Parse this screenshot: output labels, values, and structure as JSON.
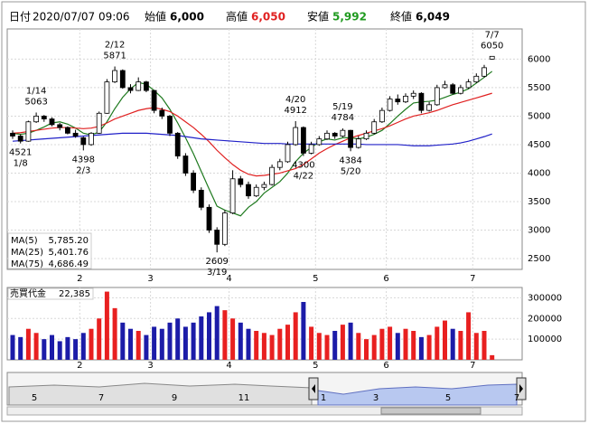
{
  "header": {
    "date_label": "日付",
    "date": "2020/07/07 09:06",
    "open_label": "始値",
    "open": "6,000",
    "high_label": "高値",
    "high": "6,050",
    "low_label": "安値",
    "low": "5,992",
    "close_label": "終値",
    "close": "6,049"
  },
  "chart_data": [
    {
      "type": "candlestick",
      "categories": [
        null,
        null,
        null,
        null,
        null,
        null,
        null,
        null,
        null,
        "2",
        null,
        null,
        null,
        null,
        null,
        null,
        null,
        null,
        "3",
        null,
        null,
        null,
        null,
        null,
        null,
        null,
        null,
        null,
        "4",
        null,
        null,
        null,
        null,
        null,
        null,
        null,
        null,
        null,
        null,
        "5",
        null,
        null,
        null,
        null,
        null,
        null,
        null,
        null,
        "6",
        null,
        null,
        null,
        null,
        null,
        null,
        null,
        null,
        null,
        null,
        "7",
        null,
        null
      ],
      "open": [
        4700,
        4650,
        4560,
        4900,
        5000,
        4950,
        4850,
        4800,
        4700,
        4620,
        4500,
        4700,
        5050,
        5600,
        5800,
        5500,
        5450,
        5600,
        5450,
        5100,
        5000,
        4700,
        4300,
        4000,
        3700,
        3400,
        3000,
        2750,
        3300,
        3900,
        3800,
        3600,
        3750,
        3800,
        4100,
        4200,
        4500,
        4800,
        4350,
        4500,
        4600,
        4700,
        4650,
        4750,
        4450,
        4600,
        4700,
        4900,
        5100,
        5300,
        5250,
        5350,
        5400,
        5100,
        5200,
        5500,
        5550,
        5400,
        5500,
        5600,
        5700,
        6000
      ],
      "high": [
        4750,
        4680,
        4920,
        5063,
        5020,
        4980,
        4880,
        4820,
        4760,
        4640,
        4720,
        5080,
        5650,
        5871,
        5820,
        5560,
        5680,
        5620,
        5460,
        5150,
        5020,
        4720,
        4350,
        4050,
        3750,
        3450,
        3050,
        3350,
        4050,
        3950,
        3850,
        3800,
        3850,
        4150,
        4250,
        4550,
        4912,
        4820,
        4550,
        4650,
        4750,
        4720,
        4784,
        4760,
        4650,
        4750,
        4950,
        5150,
        5350,
        5380,
        5400,
        5450,
        5420,
        5250,
        5550,
        5620,
        5580,
        5550,
        5650,
        5750,
        5900,
        6050
      ],
      "low": [
        4600,
        4521,
        4550,
        4880,
        4900,
        4820,
        4750,
        4680,
        4620,
        4398,
        4480,
        4690,
        5040,
        5580,
        5480,
        5400,
        5440,
        5420,
        5050,
        4950,
        4650,
        4250,
        3950,
        3650,
        3350,
        2950,
        2609,
        2720,
        3280,
        3750,
        3550,
        3580,
        3700,
        3780,
        4050,
        4180,
        4480,
        4300,
        4330,
        4480,
        4580,
        4600,
        4630,
        4384,
        4430,
        4580,
        4680,
        4880,
        5080,
        5200,
        5230,
        5300,
        5050,
        5080,
        5180,
        5480,
        5380,
        5380,
        5480,
        5580,
        5680,
        5992
      ],
      "close": [
        4650,
        4560,
        4900,
        5000,
        4950,
        4850,
        4800,
        4700,
        4650,
        4500,
        4700,
        5050,
        5600,
        5800,
        5500,
        5450,
        5600,
        5450,
        5100,
        5000,
        4700,
        4300,
        4000,
        3700,
        3400,
        3000,
        2750,
        3300,
        3900,
        3800,
        3600,
        3750,
        3800,
        4100,
        4200,
        4500,
        4800,
        4350,
        4500,
        4600,
        4700,
        4650,
        4750,
        4450,
        4600,
        4700,
        4900,
        5100,
        5300,
        5250,
        5350,
        5400,
        5100,
        5200,
        5500,
        5550,
        5400,
        5500,
        5600,
        5700,
        5850,
        6049
      ],
      "ylim": [
        2310,
        6530
      ],
      "yticks": [
        2500,
        3000,
        3500,
        4000,
        4500,
        5000,
        5500,
        6000
      ],
      "grid": true,
      "series": [
        {
          "name": "MA(5)",
          "color": "#1f7a1f",
          "current_label": "5,785.20",
          "values": [
            4700,
            4680,
            4700,
            4750,
            4810,
            4880,
            4900,
            4860,
            4790,
            4700,
            4670,
            4720,
            4900,
            5130,
            5330,
            5480,
            5590,
            5560,
            5450,
            5320,
            5120,
            4880,
            4620,
            4340,
            4030,
            3720,
            3420,
            3350,
            3300,
            3250,
            3400,
            3500,
            3650,
            3750,
            3850,
            4000,
            4200,
            4350,
            4450,
            4550,
            4600,
            4580,
            4620,
            4620,
            4600,
            4630,
            4680,
            4750,
            4870,
            5000,
            5120,
            5230,
            5250,
            5260,
            5280,
            5330,
            5380,
            5420,
            5480,
            5580,
            5680,
            5785.2
          ]
        },
        {
          "name": "MA(25)",
          "color": "#e02020",
          "current_label": "5,401.76",
          "values": [
            4700,
            4710,
            4730,
            4750,
            4770,
            4790,
            4800,
            4800,
            4790,
            4780,
            4790,
            4820,
            4880,
            4950,
            5000,
            5050,
            5100,
            5130,
            5150,
            5120,
            5080,
            5000,
            4900,
            4800,
            4680,
            4550,
            4400,
            4270,
            4150,
            4050,
            3980,
            3950,
            3960,
            3980,
            4000,
            4040,
            4080,
            4150,
            4250,
            4350,
            4430,
            4500,
            4560,
            4620,
            4660,
            4700,
            4740,
            4780,
            4830,
            4890,
            4950,
            5000,
            5030,
            5060,
            5100,
            5150,
            5200,
            5240,
            5280,
            5320,
            5360,
            5401.76
          ]
        },
        {
          "name": "MA(75)",
          "color": "#2020c8",
          "current_label": "4,686.49",
          "values": [
            4560,
            4570,
            4580,
            4590,
            4600,
            4610,
            4620,
            4630,
            4640,
            4650,
            4660,
            4670,
            4680,
            4690,
            4700,
            4700,
            4700,
            4700,
            4690,
            4680,
            4670,
            4660,
            4640,
            4620,
            4600,
            4590,
            4580,
            4570,
            4560,
            4550,
            4540,
            4530,
            4520,
            4520,
            4520,
            4510,
            4510,
            4510,
            4510,
            4510,
            4510,
            4510,
            4510,
            4510,
            4510,
            4500,
            4500,
            4500,
            4500,
            4500,
            4490,
            4480,
            4480,
            4480,
            4490,
            4500,
            4510,
            4530,
            4560,
            4600,
            4640,
            4686.49
          ]
        }
      ],
      "annotations": [
        {
          "date": "1/14",
          "price": 5063
        },
        {
          "date": "1/8",
          "price": 4521
        },
        {
          "date": "2/3",
          "price": 4398
        },
        {
          "date": "2/12",
          "price": 5871
        },
        {
          "date": "3/19",
          "price": 2609
        },
        {
          "date": "4/20",
          "price": 4912
        },
        {
          "date": "4/22",
          "price": 4300
        },
        {
          "date": "5/19",
          "price": 4784
        },
        {
          "date": "5/20",
          "price": 4384
        },
        {
          "date": "7/7",
          "price": 6050
        }
      ]
    },
    {
      "type": "bar",
      "title": "売買代金",
      "current_label": "22,385",
      "values": [
        120000,
        110000,
        150000,
        130000,
        100000,
        120000,
        90000,
        110000,
        100000,
        130000,
        150000,
        200000,
        330000,
        250000,
        180000,
        150000,
        140000,
        120000,
        160000,
        150000,
        180000,
        200000,
        160000,
        180000,
        210000,
        230000,
        260000,
        240000,
        200000,
        180000,
        150000,
        140000,
        130000,
        120000,
        150000,
        170000,
        230000,
        280000,
        160000,
        130000,
        120000,
        140000,
        170000,
        180000,
        130000,
        100000,
        120000,
        150000,
        160000,
        130000,
        150000,
        140000,
        110000,
        120000,
        160000,
        190000,
        150000,
        140000,
        230000,
        130000,
        140000,
        22385
      ],
      "colors": {
        "up": "#e82020",
        "down": "#1c1ca8"
      },
      "ylim": [
        0,
        350000
      ],
      "yticks": [
        100000,
        200000,
        300000
      ],
      "grid": true
    }
  ],
  "navigator": {
    "labels": [
      "5",
      "7",
      "9",
      "11",
      "1",
      "3",
      "5",
      "7"
    ]
  }
}
